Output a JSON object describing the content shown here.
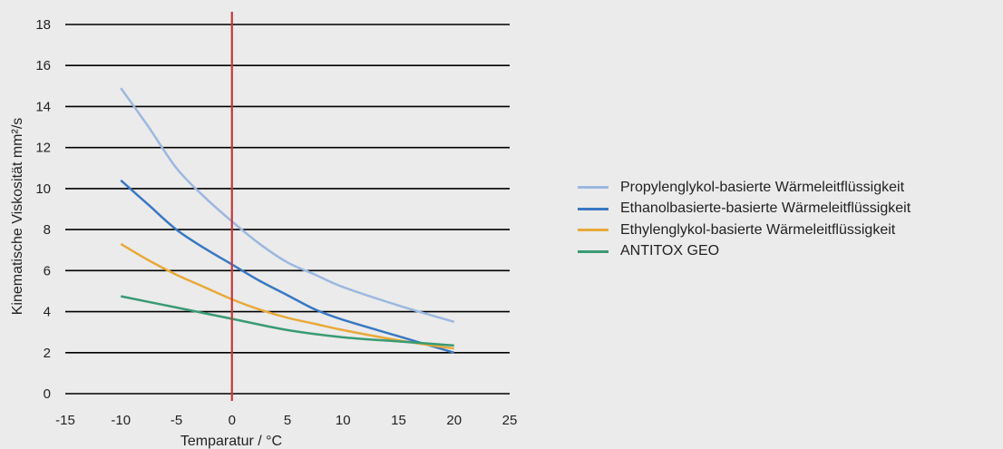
{
  "chart_data": {
    "type": "line",
    "xlabel": "Temparatur / °C",
    "ylabel": "Kinematische Viskosität mm²/s",
    "xlim": [
      -15,
      25
    ],
    "ylim": [
      0,
      18
    ],
    "x_ticks": [
      -15,
      -10,
      -5,
      0,
      5,
      10,
      15,
      20,
      25
    ],
    "y_ticks": [
      0,
      2,
      4,
      6,
      8,
      10,
      12,
      14,
      16,
      18
    ],
    "grid": "horizontal",
    "legend_position": "right",
    "reference_line": {
      "x": 0,
      "color": "#c8363c"
    },
    "series": [
      {
        "name": "Propylenglykol-basierte Wärmeleitflüssigkeit",
        "color": "#9cb8e0",
        "x": [
          -10,
          -7.5,
          -5,
          -2.5,
          0,
          2.5,
          5,
          7.5,
          10,
          15,
          20
        ],
        "y": [
          14.9,
          13.0,
          11.0,
          9.6,
          8.4,
          7.3,
          6.4,
          5.8,
          5.2,
          4.3,
          3.5
        ]
      },
      {
        "name": "Ethanolbasierte-basierte Wärmeleitflüssigkeit",
        "color": "#3a78c2",
        "x": [
          -10,
          -7.5,
          -5,
          -2.5,
          0,
          2.5,
          5,
          7.5,
          10,
          15,
          20
        ],
        "y": [
          10.4,
          9.2,
          8.0,
          7.1,
          6.3,
          5.5,
          4.8,
          4.1,
          3.6,
          2.8,
          2.0
        ]
      },
      {
        "name": "Ethylenglykol-basierte Wärmeleitflüssigkeit",
        "color": "#e8a93a",
        "x": [
          -10,
          -7.5,
          -5,
          -2.5,
          0,
          2.5,
          5,
          7.5,
          10,
          15,
          20
        ],
        "y": [
          7.3,
          6.5,
          5.8,
          5.2,
          4.6,
          4.1,
          3.7,
          3.4,
          3.1,
          2.6,
          2.2
        ]
      },
      {
        "name": "ANTITOX GEO",
        "color": "#3a9a74",
        "x": [
          -10,
          -5,
          0,
          5,
          10,
          15,
          20
        ],
        "y": [
          4.75,
          4.2,
          3.65,
          3.1,
          2.75,
          2.55,
          2.35
        ]
      }
    ]
  }
}
